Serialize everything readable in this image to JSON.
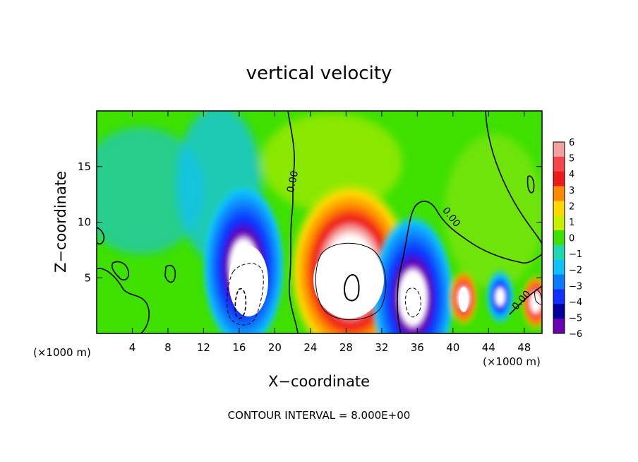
{
  "chart_data": {
    "type": "heatmap",
    "title": "vertical velocity",
    "xlabel": "X−coordinate",
    "ylabel": "Z−coordinate",
    "x_unit_left": "(×1000 m)",
    "x_unit_right": "(×1000 m)",
    "xlim": [
      0,
      50
    ],
    "ylim": [
      0,
      20
    ],
    "x_ticks": [
      4,
      8,
      12,
      16,
      20,
      24,
      28,
      32,
      36,
      40,
      44,
      48
    ],
    "y_ticks": [
      5,
      10,
      15
    ],
    "x_tick_labels": [
      "4",
      "8",
      "12",
      "16",
      "20",
      "24",
      "28",
      "32",
      "36",
      "40",
      "44",
      "48"
    ],
    "y_tick_labels": [
      "5",
      "10",
      "15"
    ],
    "colorbar": {
      "levels": [
        6,
        5,
        4,
        3,
        2,
        1,
        0,
        -1,
        -2,
        -3,
        -4,
        -5,
        -6
      ],
      "labels": [
        "6",
        "5",
        "4",
        "3",
        "2",
        "1",
        "0",
        "−1",
        "−2",
        "−3",
        "−4",
        "−5",
        "−6"
      ],
      "colors": [
        "#f2a0a0",
        "#f6444a",
        "#ee1a1a",
        "#ff8a00",
        "#ffd800",
        "#c8ee00",
        "#3ee000",
        "#20d8b0",
        "#10c0ff",
        "#0a7aff",
        "#1030ff",
        "#0000a0",
        "#6a00b0"
      ]
    },
    "contour_labels": [
      {
        "text": "0.00",
        "x": 22.5,
        "z": 13.8
      },
      {
        "text": "0.00",
        "x": 39.8,
        "z": 10.2
      },
      {
        "text": "0.00",
        "x": 47.0,
        "z": 2.6
      }
    ],
    "contour_interval_label": "CONTOUR INTERVAL = 8.000E+00",
    "features": [
      {
        "kind": "updraft",
        "x": 28.5,
        "z": 5.5,
        "w": 14
      },
      {
        "kind": "downdraft",
        "x": 16.5,
        "z": 6.0,
        "w": -14
      },
      {
        "kind": "downdraft",
        "x": 35.5,
        "z": 3.2,
        "w": -10
      },
      {
        "kind": "updraft",
        "x": 41.2,
        "z": 3.2,
        "w": 8
      },
      {
        "kind": "downdraft",
        "x": 45.3,
        "z": 3.3,
        "w": -5
      },
      {
        "kind": "updraft",
        "x": 49.3,
        "z": 2.8,
        "w": 6
      }
    ]
  }
}
